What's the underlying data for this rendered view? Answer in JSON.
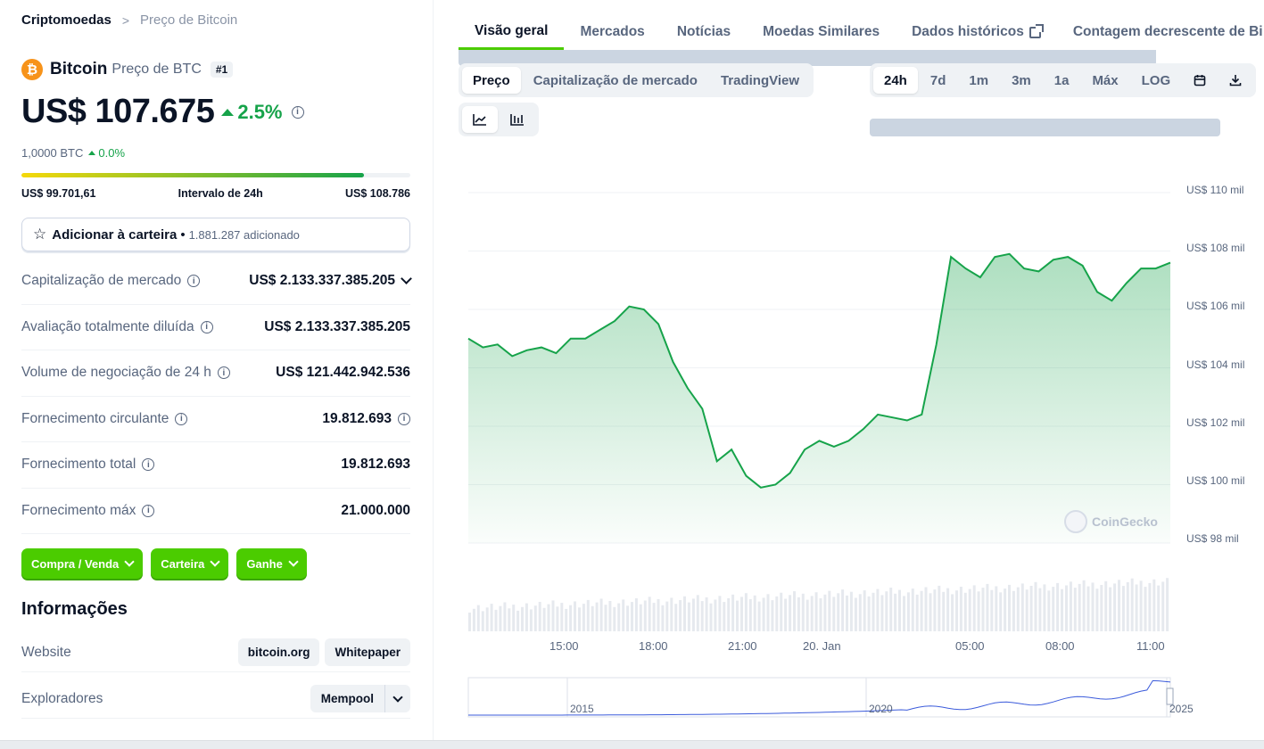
{
  "breadcrumb": {
    "root": "Criptomoedas",
    "separator": ">",
    "current": "Preço de Bitcoin"
  },
  "coin": {
    "logo_symbol": "₿",
    "name": "Bitcoin",
    "subtitle": "Preço de BTC",
    "rank": "#1",
    "price": "US$ 107.675",
    "change": "2.5%",
    "btc_value": "1,0000 BTC",
    "btc_change": "0.0%",
    "range_low": "US$ 99.701,61",
    "range_label": "Intervalo de 24h",
    "range_high": "US$ 108.786",
    "range_progress": 0.88
  },
  "add_portfolio": {
    "label": "Adicionar à carteira",
    "dot": "•",
    "count": "1.881.287 adicionado"
  },
  "stats": [
    {
      "label": "Capitalização de mercado",
      "value": "US$ 2.133.337.385.205"
    },
    {
      "label": "Avaliação totalmente diluída",
      "value": "US$ 2.133.337.385.205"
    },
    {
      "label": "Volume de negociação de 24 h",
      "value": "US$ 121.442.942.536"
    },
    {
      "label": "Fornecimento circulante",
      "value": "19.812.693"
    },
    {
      "label": "Fornecimento total",
      "value": "19.812.693"
    },
    {
      "label": "Fornecimento máx",
      "value": "21.000.000"
    }
  ],
  "actions": [
    "Compra / Venda",
    "Carteira",
    "Ganhe"
  ],
  "info": {
    "title": "Informações",
    "website_label": "Website",
    "website_links": [
      "bitcoin.org",
      "Whitepaper"
    ],
    "explorers_label": "Exploradores",
    "explorer_value": "Mempool"
  },
  "tabs": [
    "Visão geral",
    "Mercados",
    "Notícias",
    "Moedas Similares",
    "Dados históricos",
    "Contagem decrescente de Bi"
  ],
  "chart_types": [
    "Preço",
    "Capitalização de mercado",
    "TradingView"
  ],
  "ranges": [
    "24h",
    "7d",
    "1m",
    "3m",
    "1a",
    "Máx",
    "LOG"
  ],
  "watermark": "CoinGecko",
  "colors": {
    "accent": "#4bcc00",
    "line": "#16a34a",
    "up": "#16a34a"
  },
  "chart_data": {
    "type": "area",
    "ylabels": [
      "US$ 110 mil",
      "US$ 108 mil",
      "US$ 106 mil",
      "US$ 104 mil",
      "US$ 102 mil",
      "US$ 100 mil",
      "US$ 98 mil"
    ],
    "xlabels": [
      "15:00",
      "18:00",
      "21:00",
      "20. Jan",
      "05:00",
      "08:00",
      "11:00"
    ],
    "ylim": [
      98000,
      110000
    ],
    "x_hours": [
      0,
      0.5,
      1,
      1.5,
      2,
      2.5,
      3,
      3.5,
      4,
      4.5,
      5,
      5.5,
      6,
      6.5,
      7,
      7.5,
      8,
      8.5,
      9,
      9.5,
      10,
      10.5,
      11,
      11.5,
      12,
      12.5,
      13,
      13.5,
      14,
      14.5,
      15,
      15.5,
      16,
      16.5,
      17,
      17.5,
      18,
      18.5,
      19,
      19.5,
      20,
      20.5,
      21,
      21.5,
      22,
      22.5,
      23,
      23.5,
      24
    ],
    "values": [
      105000,
      104700,
      104800,
      104400,
      104600,
      104700,
      104500,
      105000,
      105000,
      105300,
      105600,
      106100,
      106000,
      105500,
      104200,
      103300,
      102600,
      100800,
      101200,
      100300,
      99900,
      100000,
      100400,
      101200,
      101500,
      101300,
      101500,
      101900,
      102400,
      102300,
      102200,
      102400,
      104800,
      107800,
      107400,
      107100,
      107800,
      107900,
      107400,
      107300,
      107700,
      107800,
      107500,
      106600,
      106300,
      106900,
      107400,
      107400,
      107600
    ],
    "mini_labels": [
      "2015",
      "2020",
      "2025"
    ]
  }
}
